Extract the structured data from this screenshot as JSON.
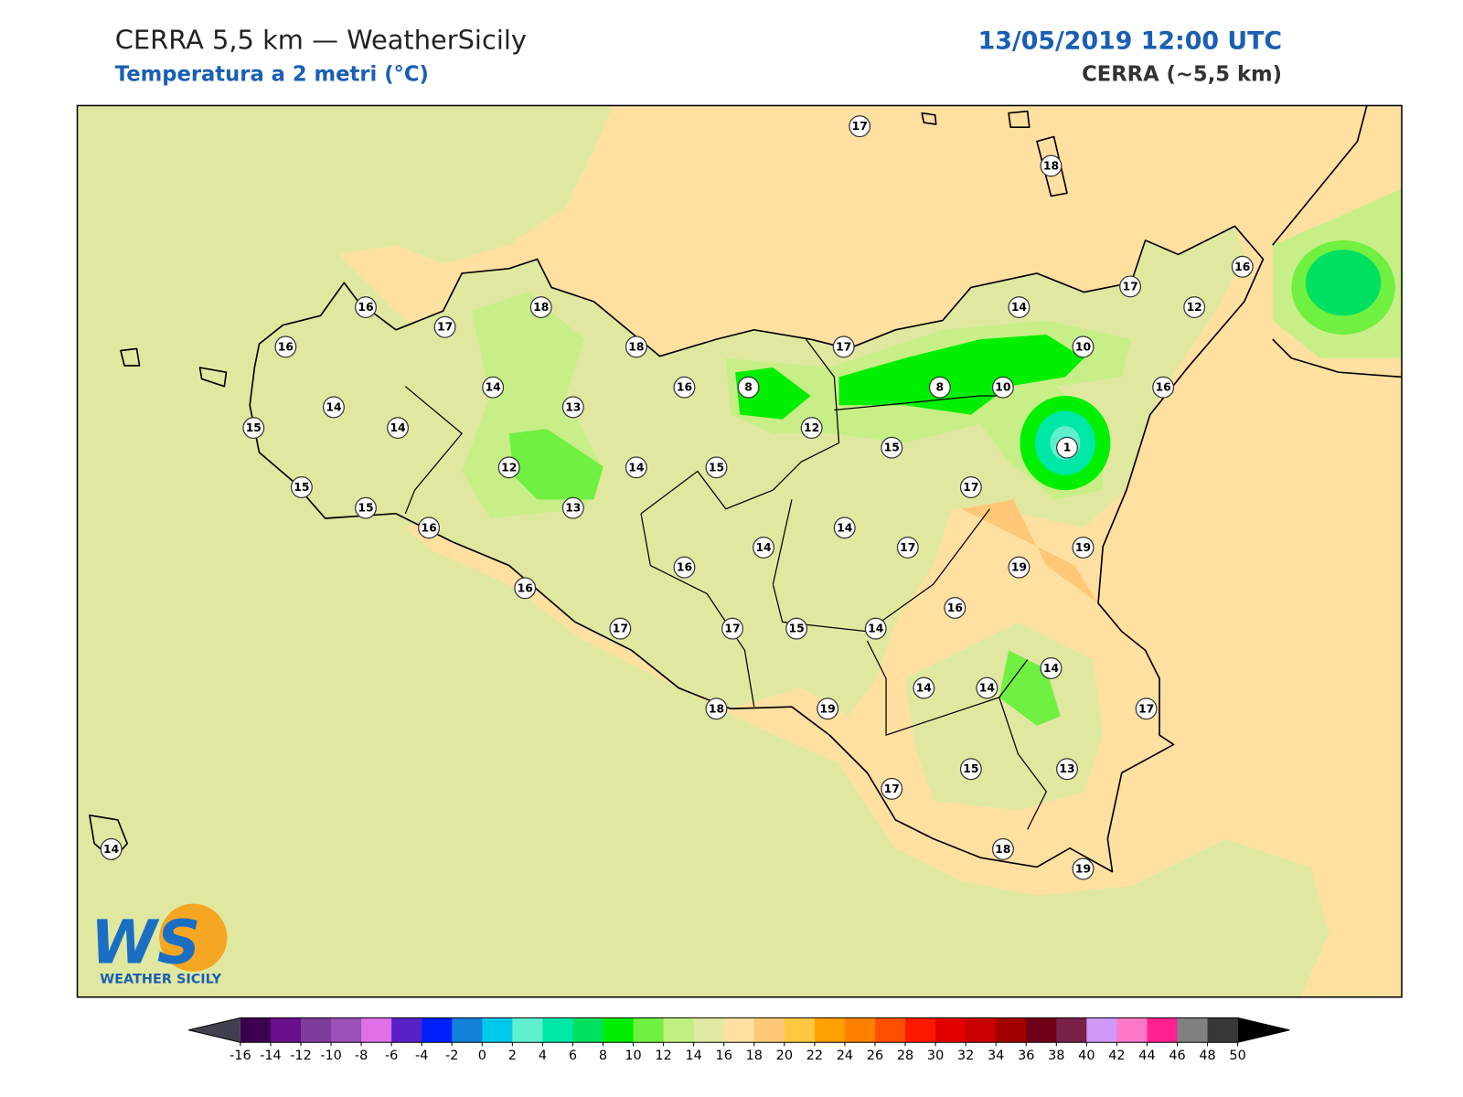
{
  "header": {
    "title": "CERRA 5,5 km — WeatherSicily",
    "subtitle": "Temperatura a 2 metri (°C)",
    "datetime": "13/05/2019 12:00 UTC",
    "model": "CERRA (~5,5 km)"
  },
  "stations": [
    17,
    18,
    16,
    16,
    17,
    18,
    17,
    14,
    12,
    16,
    18,
    17,
    10,
    14,
    16,
    8,
    8,
    10,
    16,
    14,
    13,
    15,
    14,
    12,
    15,
    1,
    12,
    14,
    15,
    15,
    17,
    15,
    13,
    16,
    14,
    14,
    17,
    19,
    16,
    19,
    16,
    16,
    17,
    17,
    15,
    14,
    14,
    14,
    14,
    18,
    19,
    17,
    15,
    13,
    17,
    18,
    19,
    14
  ],
  "colorbar": {
    "ticks": [
      -16,
      -14,
      -12,
      -10,
      -8,
      -6,
      -4,
      -2,
      0,
      2,
      4,
      6,
      8,
      10,
      12,
      14,
      16,
      18,
      20,
      22,
      24,
      26,
      28,
      30,
      32,
      34,
      36,
      38,
      40,
      42,
      44,
      46,
      48,
      50
    ],
    "colors": [
      "#3d0050",
      "#6a0f8a",
      "#7f3a9e",
      "#9b4fb8",
      "#e070e8",
      "#5a20c8",
      "#0020ff",
      "#1480d8",
      "#00c8e8",
      "#60f0d0",
      "#00e8a8",
      "#00e060",
      "#00f000",
      "#70f040",
      "#c0f080",
      "#e0eaa0",
      "#ffe0a0",
      "#ffc878",
      "#ffc840",
      "#ffa000",
      "#ff8000",
      "#ff5000",
      "#ff1800",
      "#e00000",
      "#c80000",
      "#a00000",
      "#700018",
      "#782048",
      "#d098f8",
      "#ff78c8",
      "#ff2090",
      "#808080",
      "#383838"
    ],
    "under_color": "#404050",
    "over_color": "#000000"
  },
  "logo": {
    "mark": "WS",
    "name": "WEATHER SICILY"
  }
}
